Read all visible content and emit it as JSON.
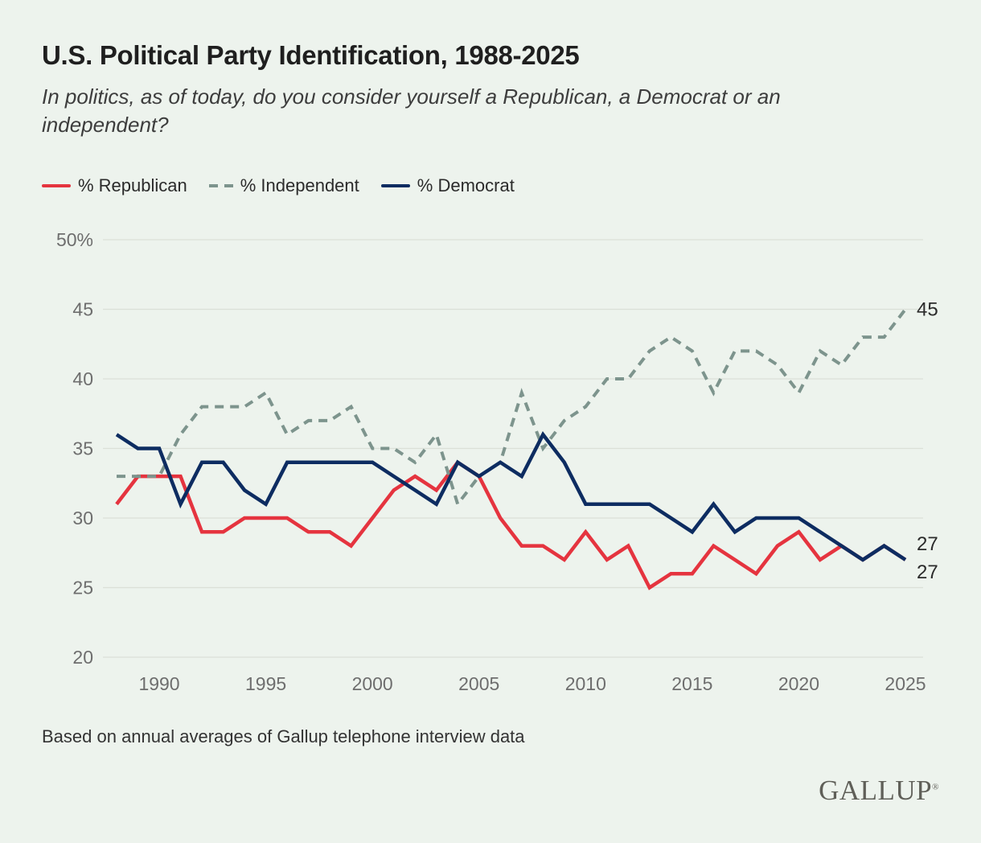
{
  "title": "U.S. Political Party Identification, 1988-2025",
  "subtitle": "In politics, as of today, do you consider yourself a Republican, a Democrat or an independent?",
  "legend": [
    {
      "label": "% Republican",
      "series": "republican",
      "style": "solid"
    },
    {
      "label": "% Independent",
      "series": "independent",
      "style": "dashed"
    },
    {
      "label": "% Democrat",
      "series": "democrat",
      "style": "solid"
    }
  ],
  "footer": "Based on annual averages of Gallup telephone interview data",
  "logo_text": "GALLUP",
  "logo_mark": "®",
  "colors": {
    "republican": "#e5343f",
    "independent": "#7d948d",
    "democrat": "#0d2c61",
    "background": "#edf3ed",
    "gridline": "#dbe0d8",
    "tick_text": "#6e6e6e",
    "end_label_text": "#2b2b2b"
  },
  "chart_data": {
    "type": "line",
    "x": [
      1988,
      1989,
      1990,
      1991,
      1992,
      1993,
      1994,
      1995,
      1996,
      1997,
      1998,
      1999,
      2000,
      2001,
      2002,
      2003,
      2004,
      2005,
      2006,
      2007,
      2008,
      2009,
      2010,
      2011,
      2012,
      2013,
      2014,
      2015,
      2016,
      2017,
      2018,
      2019,
      2020,
      2021,
      2022,
      2023,
      2024,
      2025
    ],
    "series": [
      {
        "name": "% Republican",
        "key": "republican",
        "color": "#e5343f",
        "dash": false,
        "values": [
          31,
          33,
          33,
          33,
          29,
          29,
          30,
          30,
          30,
          29,
          29,
          28,
          30,
          32,
          33,
          32,
          34,
          33,
          30,
          28,
          28,
          27,
          29,
          27,
          28,
          25,
          26,
          26,
          28,
          27,
          26,
          28,
          29,
          27,
          28,
          27,
          28,
          27
        ]
      },
      {
        "name": "% Independent",
        "key": "independent",
        "color": "#7d948d",
        "dash": true,
        "values": [
          33,
          33,
          33,
          36,
          38,
          38,
          38,
          39,
          36,
          37,
          37,
          38,
          35,
          35,
          34,
          36,
          31,
          33,
          34,
          39,
          35,
          37,
          38,
          40,
          40,
          42,
          43,
          42,
          39,
          42,
          42,
          41,
          39,
          42,
          41,
          43,
          43,
          45
        ]
      },
      {
        "name": "% Democrat",
        "key": "democrat",
        "color": "#0d2c61",
        "dash": false,
        "values": [
          36,
          35,
          35,
          31,
          34,
          34,
          32,
          31,
          34,
          34,
          34,
          34,
          34,
          33,
          32,
          31,
          34,
          33,
          34,
          33,
          36,
          34,
          31,
          31,
          31,
          31,
          30,
          29,
          31,
          29,
          30,
          30,
          30,
          29,
          28,
          27,
          28,
          27
        ]
      }
    ],
    "ylim": [
      20,
      50
    ],
    "yticks": [
      50,
      45,
      40,
      35,
      30,
      25,
      20
    ],
    "ytick_labels": [
      "50%",
      "45",
      "40",
      "35",
      "30",
      "25",
      "20"
    ],
    "xticks": [
      1990,
      1995,
      2000,
      2005,
      2010,
      2015,
      2020,
      2025
    ],
    "grid": true,
    "legend_position": "top-left",
    "end_labels": [
      {
        "series": "independent",
        "text": "45"
      },
      {
        "series": "republican",
        "text": "27"
      },
      {
        "series": "democrat",
        "text": "27"
      }
    ]
  }
}
